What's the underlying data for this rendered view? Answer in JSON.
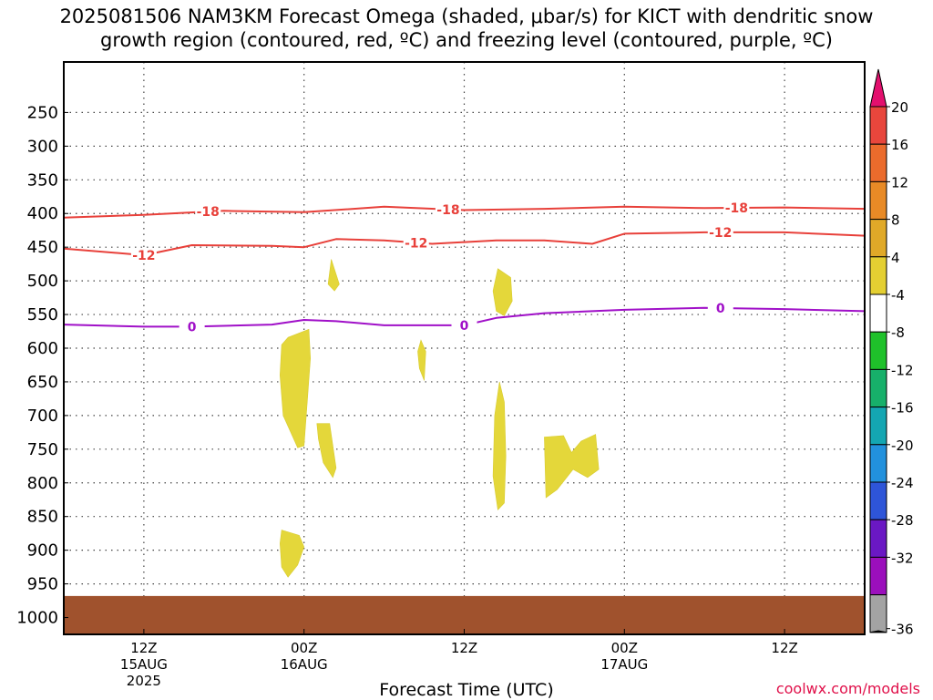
{
  "title_line1": "2025081506 NAM3KM Forecast Omega (shaded, μbar/s) for KICT with dendritic snow",
  "title_line2": "growth region (contoured, red, ºC) and freezing level (contoured, purple, ºC)",
  "credit": "coolwx.com/models",
  "chart_data": {
    "type": "heatmap",
    "xlabel": "Forecast Time (UTC)",
    "x_range_hours": [
      -5,
      45
    ],
    "x_ticks": [
      {
        "hour": 0,
        "lines": [
          "12Z",
          "15AUG",
          "2025"
        ]
      },
      {
        "hour": 10,
        "lines": [
          "00Z",
          "16AUG"
        ]
      },
      {
        "hour": 20,
        "lines": [
          "12Z"
        ]
      },
      {
        "hour": 30,
        "lines": [
          "00Z",
          "17AUG"
        ]
      },
      {
        "hour": 40,
        "lines": [
          "12Z"
        ]
      }
    ],
    "y_ticks": [
      "250",
      "300",
      "350",
      "400",
      "450",
      "500",
      "550",
      "600",
      "650",
      "700",
      "750",
      "800",
      "850",
      "900",
      "950",
      "1000"
    ],
    "y_range_hPa": [
      175,
      1025
    ],
    "grid": true,
    "colorbar": {
      "labels": [
        "20",
        "16",
        "12",
        "8",
        "4",
        "-4",
        "-8",
        "-12",
        "-16",
        "-20",
        "-24",
        "-28",
        "-32",
        "-36"
      ],
      "colors": [
        "#e3106e",
        "#e8463c",
        "#eb6b2c",
        "#e88a26",
        "#e0a928",
        "#e4cf32",
        "#ffffff",
        "#1fc12a",
        "#17b06a",
        "#14a6b2",
        "#2291dd",
        "#2e55d8",
        "#6a18c4",
        "#9b0fbc",
        "#a3a3a3",
        "#000000"
      ]
    },
    "contours": [
      {
        "label": "-18",
        "color": "#e8403a",
        "points": [
          [
            -5,
            406
          ],
          [
            0,
            402
          ],
          [
            5,
            396
          ],
          [
            10,
            398
          ],
          [
            15,
            390
          ],
          [
            20,
            395
          ],
          [
            25,
            393
          ],
          [
            30,
            390
          ],
          [
            35,
            392
          ],
          [
            40,
            391
          ],
          [
            45,
            393
          ]
        ],
        "label_hours": [
          4,
          19,
          37
        ]
      },
      {
        "label": "-12",
        "color": "#e8403a",
        "points": [
          [
            -5,
            452
          ],
          [
            0,
            462
          ],
          [
            3,
            447
          ],
          [
            8,
            448
          ],
          [
            10,
            450
          ],
          [
            12,
            438
          ],
          [
            15,
            440
          ],
          [
            18,
            445
          ],
          [
            22,
            440
          ],
          [
            25,
            440
          ],
          [
            28,
            445
          ],
          [
            30,
            430
          ],
          [
            35,
            428
          ],
          [
            40,
            428
          ],
          [
            45,
            433
          ]
        ],
        "label_hours": [
          0,
          17,
          36
        ]
      },
      {
        "label": "0",
        "color": "#a010c8",
        "points": [
          [
            -5,
            565
          ],
          [
            0,
            568
          ],
          [
            3,
            568
          ],
          [
            8,
            565
          ],
          [
            10,
            558
          ],
          [
            12,
            560
          ],
          [
            15,
            566
          ],
          [
            20,
            566
          ],
          [
            22,
            555
          ],
          [
            25,
            548
          ],
          [
            30,
            543
          ],
          [
            35,
            540
          ],
          [
            40,
            542
          ],
          [
            45,
            545
          ]
        ],
        "label_hours": [
          3,
          20,
          36
        ]
      }
    ],
    "shaded_color_value": "4 to 8",
    "ground_top_hPa": 968,
    "ground_color": "#a0522d"
  }
}
